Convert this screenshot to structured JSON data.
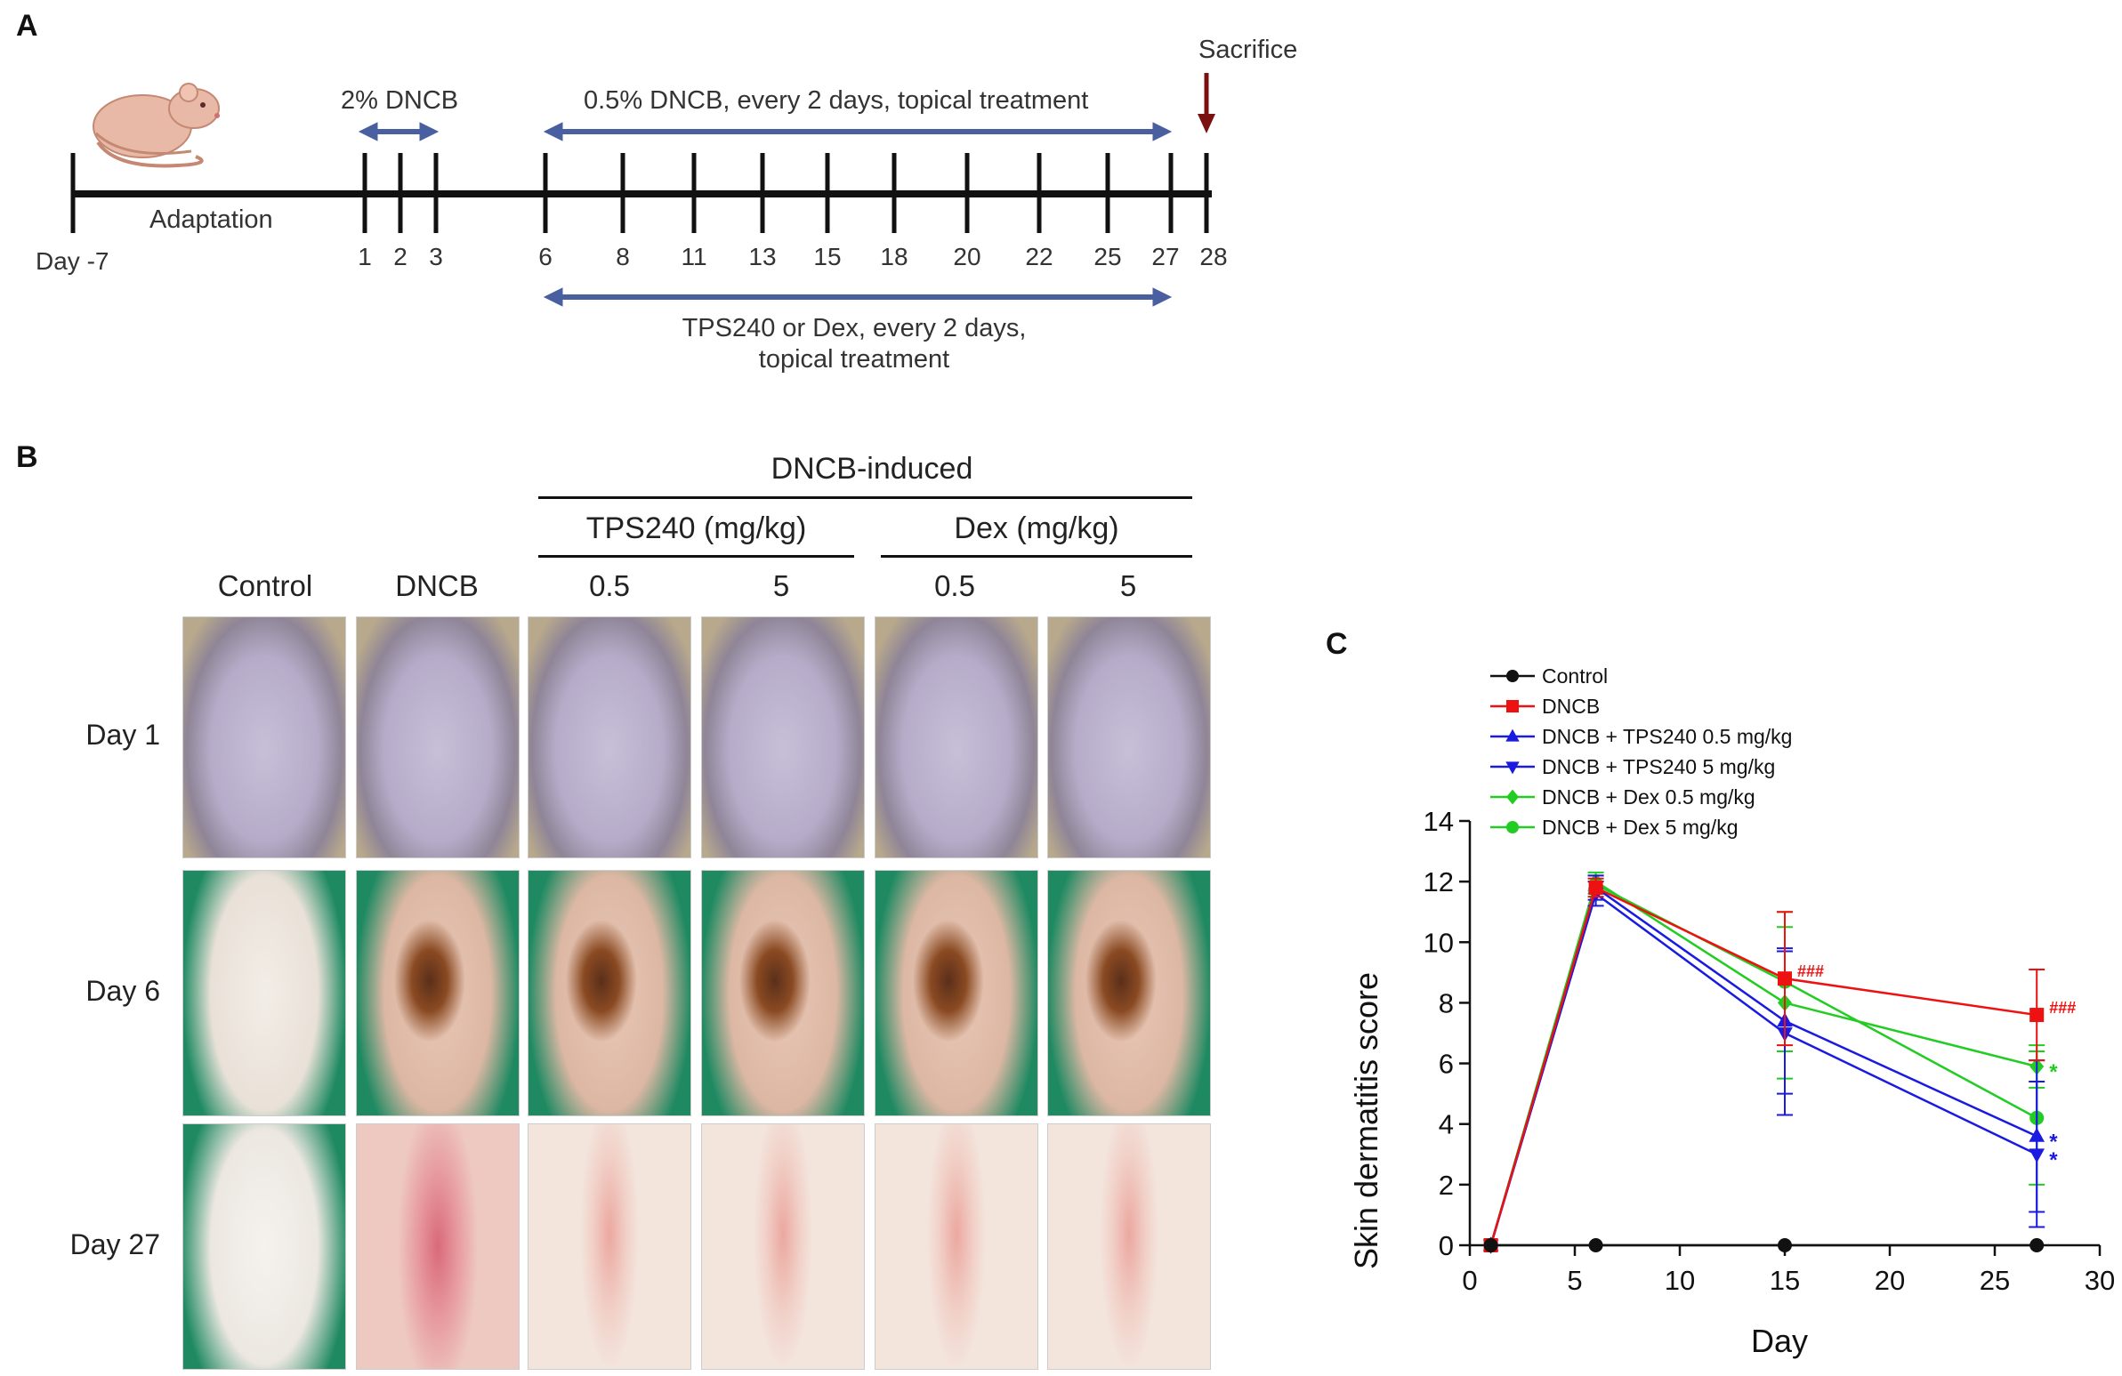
{
  "panels": {
    "a": "A",
    "b": "B",
    "c": "C"
  },
  "timeline": {
    "start_label": "Day -7",
    "adaptation_label": "Adaptation",
    "sacrifice_label": "Sacrifice",
    "induction_label": "2% DNCB",
    "maintenance_label": "0.5% DNCB, every 2 days, topical treatment",
    "treatment_label_line1": "TPS240 or Dex, every 2 days,",
    "treatment_label_line2": "topical treatment",
    "days": [
      "1",
      "2",
      "3",
      "6",
      "8",
      "11",
      "13",
      "15",
      "18",
      "20",
      "22",
      "25",
      "27",
      "28"
    ],
    "colors": {
      "axis": "#111111",
      "arrow": "#4a5fa0",
      "sacrifice": "#7a1010"
    }
  },
  "photo_grid": {
    "group_title": "DNCB-induced",
    "tps_title": "TPS240 (mg/kg)",
    "dex_title": "Dex (mg/kg)",
    "columns": [
      "Control",
      "DNCB",
      "0.5",
      "5",
      "0.5",
      "5"
    ],
    "rows": [
      "Day 1",
      "Day 6",
      "Day 27"
    ]
  },
  "chart_data": {
    "type": "line",
    "title": "",
    "xlabel": "Day",
    "ylabel": "Skin dermatitis score",
    "xlim": [
      0,
      30
    ],
    "ylim": [
      0,
      14
    ],
    "xticks": [
      "0",
      "5",
      "10",
      "15",
      "20",
      "25",
      "30"
    ],
    "yticks": [
      "0",
      "2",
      "4",
      "6",
      "8",
      "10",
      "12",
      "14"
    ],
    "x": [
      1,
      6,
      15,
      27
    ],
    "series": [
      {
        "name": "Control",
        "color": "#111111",
        "marker": "circle",
        "values": [
          0,
          0,
          0,
          0
        ]
      },
      {
        "name": "DNCB",
        "color": "#ee1111",
        "marker": "square",
        "values": [
          0,
          11.8,
          8.8,
          7.6
        ],
        "err_high": [
          0,
          0.3,
          2.2,
          1.5
        ]
      },
      {
        "name": "DNCB + TPS240 0.5 mg/kg",
        "color": "#1a1ae0",
        "marker": "triangle-up",
        "values": [
          0,
          11.8,
          7.4,
          3.6
        ],
        "err_high": [
          0,
          0.4,
          2.4,
          2.5
        ]
      },
      {
        "name": "DNCB + TPS240 5 mg/kg",
        "color": "#1a1ae0",
        "marker": "triangle-down",
        "values": [
          0,
          11.6,
          7.0,
          3.0
        ],
        "err_high": [
          0,
          0.4,
          2.7,
          2.4
        ]
      },
      {
        "name": "DNCB + Dex 0.5 mg/kg",
        "color": "#22cc22",
        "marker": "diamond",
        "values": [
          0,
          12.0,
          8.0,
          5.9
        ],
        "err_high": [
          0,
          0.3,
          2.5,
          0.7
        ]
      },
      {
        "name": "DNCB + Dex 5 mg/kg",
        "color": "#22cc22",
        "marker": "circle",
        "values": [
          0,
          11.9,
          8.7,
          4.2
        ],
        "err_high": [
          0,
          0.3,
          2.3,
          2.2
        ]
      }
    ],
    "annotations": [
      {
        "text": "###",
        "x": 15,
        "y": 8.8,
        "color": "#ee1111"
      },
      {
        "text": "###",
        "x": 27,
        "y": 7.6,
        "color": "#ee1111"
      },
      {
        "text": "*",
        "x": 27,
        "y": 5.9,
        "color": "#22cc22"
      },
      {
        "text": "*",
        "x": 27,
        "y": 3.6,
        "color": "#1a1ae0"
      },
      {
        "text": "*",
        "x": 27,
        "y": 3.0,
        "color": "#1a1ae0"
      }
    ]
  }
}
